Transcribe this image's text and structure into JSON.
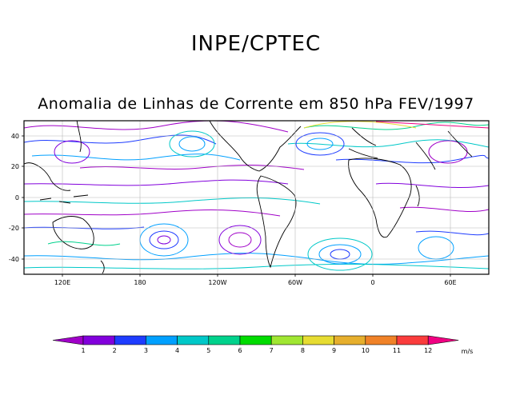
{
  "header": {
    "title": "INPE/CPTEC",
    "subtitle": "Anomalia de Linhas de Corrente em 850 hPa FEV/1997"
  },
  "map": {
    "lat_ticks": [
      {
        "label": "40",
        "value": 40
      },
      {
        "label": "20",
        "value": 20
      },
      {
        "label": "0",
        "value": 0
      },
      {
        "label": "-20",
        "value": -20
      },
      {
        "label": "-40",
        "value": -40
      }
    ],
    "lon_ticks": [
      {
        "label": "120E",
        "value": 120
      },
      {
        "label": "180",
        "value": 180
      },
      {
        "label": "120W",
        "value": 240
      },
      {
        "label": "60W",
        "value": 300
      },
      {
        "label": "0",
        "value": 360
      },
      {
        "label": "60E",
        "value": 420
      }
    ],
    "lon_range": [
      90,
      450
    ],
    "lat_range": [
      -50,
      50
    ],
    "grid": true
  },
  "colorbar": {
    "unit": "m/s",
    "labels": [
      "1",
      "2",
      "3",
      "4",
      "5",
      "6",
      "7",
      "8",
      "9",
      "10",
      "11",
      "12"
    ],
    "colors": [
      "#a000c8",
      "#8200dc",
      "#1e3cff",
      "#00a0ff",
      "#00c8c8",
      "#00d28c",
      "#00dc00",
      "#a0e632",
      "#e6dc32",
      "#e6af2d",
      "#f08228",
      "#fa3c3c",
      "#f00082"
    ]
  }
}
